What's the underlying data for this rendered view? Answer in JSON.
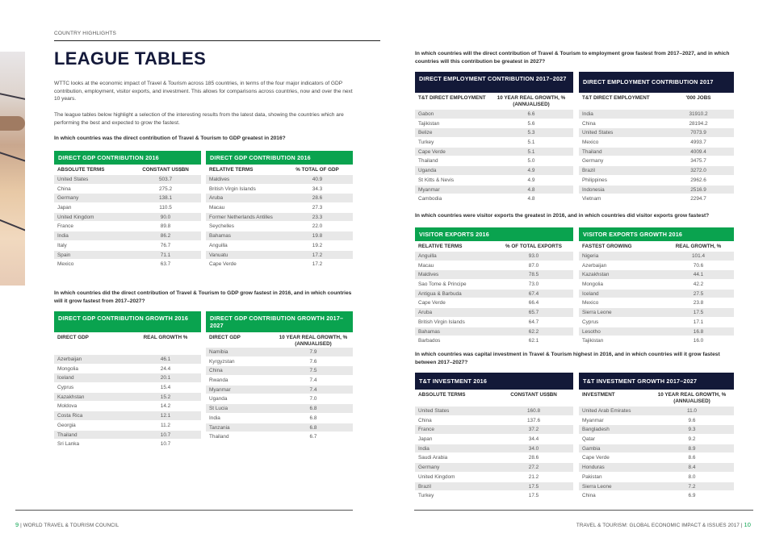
{
  "header": {
    "section": "COUNTRY HIGHLIGHTS",
    "title": "LEAGUE TABLES"
  },
  "intro": {
    "p1": "WTTC looks at the economic impact of Travel & Tourism across 185 countries, in terms of the four major indicators of GDP contribution, employment, visitor exports, and investment. This allows for comparisons across countries, now and over the next 10 years.",
    "p2": "The league tables below highlight a selection of the interesting results from the latest data, showing the countries which are performing the best and expected to grow the fastest."
  },
  "questions": {
    "gdp": "In which countries was the direct contribution of Travel & Tourism to GDP greatest in 2016?",
    "gdp_growth": "In which countries did the direct contribution of Travel & Tourism to GDP grow fastest in 2016, and in which countries will it grow fastest from 2017–2027?",
    "employment": "In which countries will the direct contribution of Travel & Tourism to employment grow fastest from 2017–2027, and in which countries will this contribution be greatest in 2027?",
    "exports": "In which countries were visitor exports the greatest in 2016, and in which countries did visitor exports grow fastest?",
    "investment": "In which countries was capital investment in Travel & Tourism highest in 2016, and in which countries will it grow fastest between 2017–2027?"
  },
  "tables": {
    "gdp_abs": {
      "title": "DIRECT GDP CONTRIBUTION 2016",
      "col1": "ABSOLUTE TERMS",
      "col2": "CONSTANT US$BN",
      "rows": [
        [
          "United States",
          "503.7"
        ],
        [
          "China",
          "275.2"
        ],
        [
          "Germany",
          "138.1"
        ],
        [
          "Japan",
          "110.5"
        ],
        [
          "United Kingdom",
          "90.0"
        ],
        [
          "France",
          "89.8"
        ],
        [
          "India",
          "86.2"
        ],
        [
          "Italy",
          "76.7"
        ],
        [
          "Spain",
          "71.1"
        ],
        [
          "Mexico",
          "63.7"
        ]
      ]
    },
    "gdp_rel": {
      "title": "DIRECT GDP CONTRIBUTION 2016",
      "col1": "RELATIVE TERMS",
      "col2": "% TOTAL OF GDP",
      "rows": [
        [
          "Maldives",
          "40.9"
        ],
        [
          "British Virgin Islands",
          "34.3"
        ],
        [
          "Aruba",
          "28.6"
        ],
        [
          "Macau",
          "27.3"
        ],
        [
          "Former Netherlands Antilles",
          "23.3"
        ],
        [
          "Seychelles",
          "22.0"
        ],
        [
          "Bahamas",
          "19.8"
        ],
        [
          "Anguilla",
          "19.2"
        ],
        [
          "Vanuatu",
          "17.2"
        ],
        [
          "Cape Verde",
          "17.2"
        ]
      ]
    },
    "gdp_growth_2016": {
      "title": "DIRECT GDP CONTRIBUTION GROWTH 2016",
      "col1": "DIRECT GDP",
      "col2": "REAL GROWTH %",
      "rows": [
        [
          "Azerbaijan",
          "46.1"
        ],
        [
          "Mongolia",
          "24.4"
        ],
        [
          "Iceland",
          "20.1"
        ],
        [
          "Cyprus",
          "15.4"
        ],
        [
          "Kazakhstan",
          "15.2"
        ],
        [
          "Moldova",
          "14.2"
        ],
        [
          "Costa Rica",
          "12.1"
        ],
        [
          "Georgia",
          "11.2"
        ],
        [
          "Thailand",
          "10.7"
        ],
        [
          "Sri Lanka",
          "10.7"
        ]
      ]
    },
    "gdp_growth_2027": {
      "title": "DIRECT GDP CONTRIBUTION GROWTH 2017–2027",
      "col1": "DIRECT GDP",
      "col2": "10 YEAR REAL GROWTH, % (ANNUALISED)",
      "rows": [
        [
          "Namibia",
          "7.9"
        ],
        [
          "Kyrgyzstan",
          "7.6"
        ],
        [
          "China",
          "7.5"
        ],
        [
          "Rwanda",
          "7.4"
        ],
        [
          "Myanmar",
          "7.4"
        ],
        [
          "Uganda",
          "7.0"
        ],
        [
          "St Lucia",
          "6.8"
        ],
        [
          "India",
          "6.8"
        ],
        [
          "Tanzania",
          "6.8"
        ],
        [
          "Thailand",
          "6.7"
        ]
      ]
    },
    "emp_growth": {
      "title": "DIRECT EMPLOYMENT CONTRIBUTION 2017–2027",
      "col1": "T&T DIRECT EMPLOYMENT",
      "col2": "10 YEAR REAL GROWTH, % (ANNUALISED)",
      "rows": [
        [
          "Gabon",
          "6.6"
        ],
        [
          "Tajikistan",
          "5.6"
        ],
        [
          "Belize",
          "5.3"
        ],
        [
          "Turkey",
          "5.1"
        ],
        [
          "Cape Verde",
          "5.1"
        ],
        [
          "Thailand",
          "5.0"
        ],
        [
          "Uganda",
          "4.9"
        ],
        [
          "St Kitts & Nevis",
          "4.9"
        ],
        [
          "Myanmar",
          "4.8"
        ],
        [
          "Cambodia",
          "4.8"
        ]
      ]
    },
    "emp_2017": {
      "title": "DIRECT EMPLOYMENT CONTRIBUTION 2017",
      "col1": "T&T DIRECT EMPLOYMENT",
      "col2": "'000 JOBS",
      "rows": [
        [
          "India",
          "31910.2"
        ],
        [
          "China",
          "28194.2"
        ],
        [
          "United States",
          "7073.9"
        ],
        [
          "Mexico",
          "4993.7"
        ],
        [
          "Thailand",
          "4009.4"
        ],
        [
          "Germany",
          "3475.7"
        ],
        [
          "Brazil",
          "3272.0"
        ],
        [
          "Philippines",
          "2962.6"
        ],
        [
          "Indonesia",
          "2516.9"
        ],
        [
          "Vietnam",
          "2294.7"
        ]
      ]
    },
    "exports_2016": {
      "title": "VISITOR EXPORTS 2016",
      "col1": "RELATIVE TERMS",
      "col2": "% OF TOTAL EXPORTS",
      "rows": [
        [
          "Anguilla",
          "93.0"
        ],
        [
          "Macau",
          "87.0"
        ],
        [
          "Maldives",
          "78.5"
        ],
        [
          "Sao Tome & Principe",
          "73.0"
        ],
        [
          "Antigua & Barbuda",
          "67.4"
        ],
        [
          "Cape Verde",
          "66.4"
        ],
        [
          "Aruba",
          "65.7"
        ],
        [
          "British Virgin Islands",
          "64.7"
        ],
        [
          "Bahamas",
          "62.2"
        ],
        [
          "Barbados",
          "62.1"
        ]
      ]
    },
    "exports_growth": {
      "title": "VISITOR EXPORTS GROWTH 2016",
      "col1": "FASTEST GROWING",
      "col2": "REAL GROWTH, %",
      "rows": [
        [
          "Nigeria",
          "101.4"
        ],
        [
          "Azerbaijan",
          "70.6"
        ],
        [
          "Kazakhstan",
          "44.1"
        ],
        [
          "Mongolia",
          "42.2"
        ],
        [
          "Iceland",
          "27.5"
        ],
        [
          "Mexico",
          "23.8"
        ],
        [
          "Sierra Leone",
          "17.5"
        ],
        [
          "Cyprus",
          "17.1"
        ],
        [
          "Lesotho",
          "16.8"
        ],
        [
          "Tajikistan",
          "16.0"
        ]
      ]
    },
    "invest_2016": {
      "title": "T&T INVESTMENT 2016",
      "col1": "ABSOLUTE TERMS",
      "col2": "CONSTANT US$BN",
      "rows": [
        [
          "United States",
          "160.8"
        ],
        [
          "China",
          "137.6"
        ],
        [
          "France",
          "37.2"
        ],
        [
          "Japan",
          "34.4"
        ],
        [
          "India",
          "34.0"
        ],
        [
          "Saudi Arabia",
          "28.6"
        ],
        [
          "Germany",
          "27.2"
        ],
        [
          "United Kingdom",
          "21.2"
        ],
        [
          "Brazil",
          "17.5"
        ],
        [
          "Turkey",
          "17.5"
        ]
      ]
    },
    "invest_growth": {
      "title": "T&T INVESTMENT GROWTH 2017–2027",
      "col1": "INVESTMENT",
      "col2": "10 YEAR REAL GROWTH, % (ANNUALISED)",
      "rows": [
        [
          "United Arab Emirates",
          "11.0"
        ],
        [
          "Myanmar",
          "9.6"
        ],
        [
          "Bangladesh",
          "9.3"
        ],
        [
          "Qatar",
          "9.2"
        ],
        [
          "Gambia",
          "8.9"
        ],
        [
          "Cape Verde",
          "8.6"
        ],
        [
          "Honduras",
          "8.4"
        ],
        [
          "Pakistan",
          "8.0"
        ],
        [
          "Sierra Leone",
          "7.2"
        ],
        [
          "China",
          "6.9"
        ]
      ]
    }
  },
  "footer": {
    "left_page": "9",
    "left_text": "WORLD TRAVEL & TOURISM COUNCIL",
    "right_text": "TRAVEL & TOURISM: GLOBAL ECONOMIC IMPACT & ISSUES 2017",
    "right_page": "10",
    "separator": "|"
  },
  "colors": {
    "green": "#0aa34f",
    "navy": "#131938",
    "stripe": "#e8e8e8"
  }
}
